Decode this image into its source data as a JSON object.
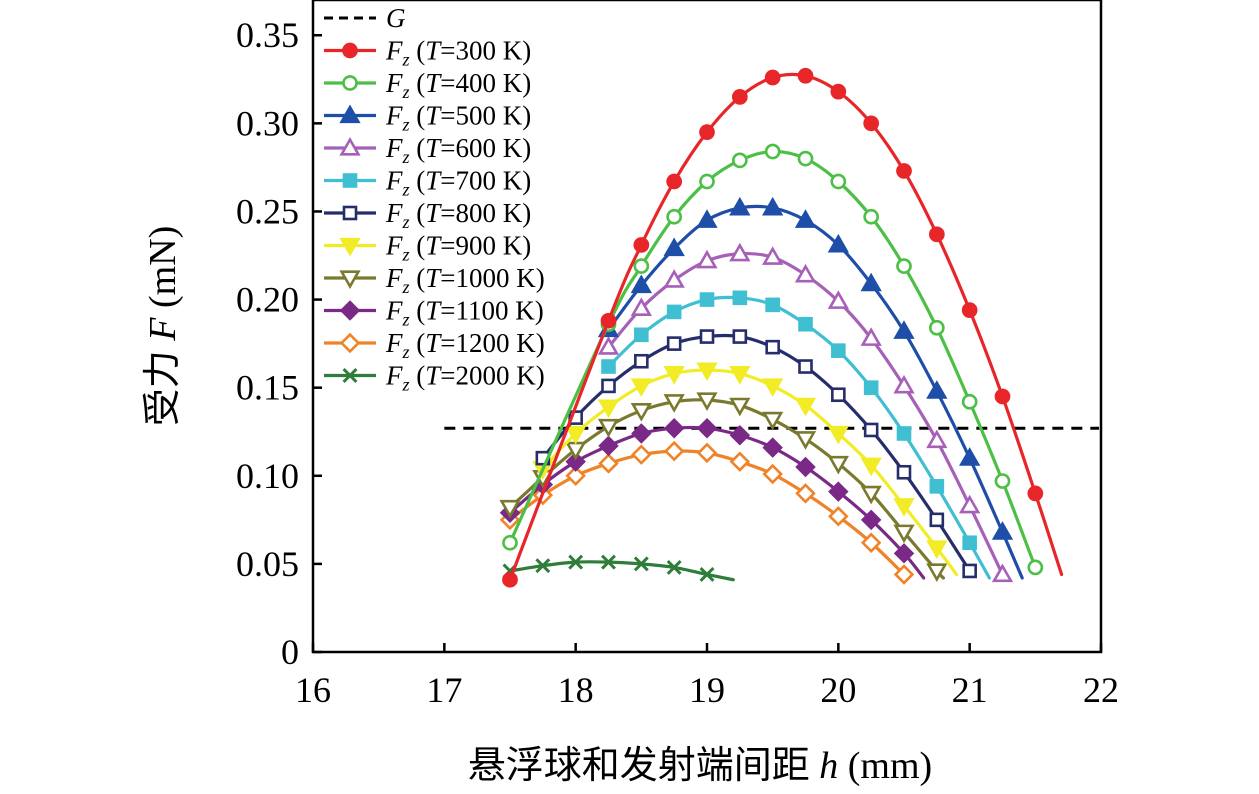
{
  "chart_data": {
    "type": "line",
    "xlabel": "悬浮球和发射端间距 h (mm)",
    "ylabel": "受力 F (mN)",
    "xlim": [
      16,
      22
    ],
    "ylim": [
      0,
      0.37
    ],
    "xticks": [
      "16",
      "17",
      "18",
      "19",
      "20",
      "21",
      "22"
    ],
    "yticks": [
      "0",
      "0.05",
      "0.10",
      "0.15",
      "0.20",
      "0.25",
      "0.30",
      "0.35"
    ],
    "grid": false,
    "legend_placement": "top-left",
    "reference_line": {
      "name": "G",
      "y": 0.127,
      "x_range": [
        17.0,
        22.0
      ],
      "color": "#000000",
      "style": "dashed"
    },
    "series": [
      {
        "name": "Fz (T=300 K)",
        "color": "#e8262a",
        "marker": "circle",
        "filled": true,
        "x": [
          17.5,
          18.25,
          18.5,
          18.75,
          19.0,
          19.25,
          19.5,
          19.75,
          20.0,
          20.25,
          20.5,
          20.75,
          21.0,
          21.25,
          21.5
        ],
        "y": [
          0.041,
          0.188,
          0.231,
          0.267,
          0.295,
          0.315,
          0.326,
          0.327,
          0.318,
          0.3,
          0.273,
          0.237,
          0.194,
          0.145,
          0.09
        ],
        "end_x": 21.7,
        "end_y": 0.044
      },
      {
        "name": "Fz (T=400 K)",
        "color": "#4cc046",
        "marker": "circle",
        "filled": false,
        "x": [
          17.5,
          18.25,
          18.5,
          18.75,
          19.0,
          19.25,
          19.5,
          19.75,
          20.0,
          20.25,
          20.5,
          20.75,
          21.0,
          21.25,
          21.5
        ],
        "y": [
          0.062,
          0.186,
          0.219,
          0.247,
          0.267,
          0.279,
          0.284,
          0.28,
          0.267,
          0.247,
          0.219,
          0.184,
          0.142,
          0.097,
          0.048
        ],
        "end_x": 21.5,
        "end_y": 0.048
      },
      {
        "name": "Fz (T=500 K)",
        "color": "#1f4ea8",
        "marker": "triangle",
        "filled": true,
        "x": [
          18.25,
          18.5,
          18.75,
          19.0,
          19.25,
          19.5,
          19.75,
          20.0,
          20.25,
          20.5,
          20.75,
          21.0,
          21.25
        ],
        "y": [
          0.183,
          0.208,
          0.229,
          0.245,
          0.252,
          0.252,
          0.245,
          0.231,
          0.209,
          0.182,
          0.148,
          0.11,
          0.068
        ],
        "end_x": 21.4,
        "end_y": 0.042
      },
      {
        "name": "Fz (T=600 K)",
        "color": "#a660b8",
        "marker": "triangle",
        "filled": false,
        "x": [
          18.25,
          18.5,
          18.75,
          19.0,
          19.25,
          19.5,
          19.75,
          20.0,
          20.25,
          20.5,
          20.75,
          21.0,
          21.25
        ],
        "y": [
          0.173,
          0.195,
          0.211,
          0.222,
          0.226,
          0.224,
          0.214,
          0.199,
          0.178,
          0.151,
          0.12,
          0.083,
          0.044
        ],
        "end_x": 21.25,
        "end_y": 0.044
      },
      {
        "name": "Fz (T=700 K)",
        "color": "#3fbfd1",
        "marker": "square",
        "filled": true,
        "x": [
          18.25,
          18.5,
          18.75,
          19.0,
          19.25,
          19.5,
          19.75,
          20.0,
          20.25,
          20.5,
          20.75,
          21.0
        ],
        "y": [
          0.162,
          0.18,
          0.193,
          0.2,
          0.201,
          0.197,
          0.186,
          0.171,
          0.15,
          0.124,
          0.094,
          0.062
        ],
        "end_x": 21.15,
        "end_y": 0.042
      },
      {
        "name": "Fz (T=800 K)",
        "color": "#262d6b",
        "marker": "square",
        "filled": false,
        "x": [
          17.75,
          18.0,
          18.25,
          18.5,
          18.75,
          19.0,
          19.25,
          19.5,
          19.75,
          20.0,
          20.25,
          20.5,
          20.75,
          21.0
        ],
        "y": [
          0.11,
          0.133,
          0.151,
          0.165,
          0.175,
          0.179,
          0.179,
          0.173,
          0.162,
          0.146,
          0.126,
          0.102,
          0.075,
          0.046
        ],
        "end_x": 21.0,
        "end_y": 0.046
      },
      {
        "name": "Fz (T=900 K)",
        "color": "#f2ec26",
        "marker": "triangle-down",
        "filled": true,
        "x": [
          17.75,
          18.0,
          18.25,
          18.5,
          18.75,
          19.0,
          19.25,
          19.5,
          19.75,
          20.0,
          20.25,
          20.5,
          20.75
        ],
        "y": [
          0.104,
          0.124,
          0.139,
          0.151,
          0.158,
          0.16,
          0.158,
          0.151,
          0.14,
          0.124,
          0.106,
          0.083,
          0.059
        ],
        "end_x": 20.9,
        "end_y": 0.044
      },
      {
        "name": "Fz (T=1000 K)",
        "color": "#7a7a2e",
        "marker": "triangle-down",
        "filled": false,
        "x": [
          17.5,
          17.75,
          18.0,
          18.25,
          18.5,
          18.75,
          19.0,
          19.25,
          19.5,
          19.75,
          20.0,
          20.25,
          20.5,
          20.75
        ],
        "y": [
          0.082,
          0.099,
          0.115,
          0.128,
          0.137,
          0.142,
          0.143,
          0.14,
          0.132,
          0.121,
          0.107,
          0.09,
          0.068,
          0.046
        ],
        "end_x": 20.8,
        "end_y": 0.042
      },
      {
        "name": "Fz (T=1100 K)",
        "color": "#7a2a86",
        "marker": "diamond",
        "filled": true,
        "x": [
          17.5,
          17.75,
          18.0,
          18.25,
          18.5,
          18.75,
          19.0,
          19.25,
          19.5,
          19.75,
          20.0,
          20.25,
          20.5
        ],
        "y": [
          0.079,
          0.095,
          0.108,
          0.117,
          0.124,
          0.127,
          0.127,
          0.123,
          0.116,
          0.105,
          0.091,
          0.075,
          0.056
        ],
        "end_x": 20.65,
        "end_y": 0.042
      },
      {
        "name": "Fz (T=1200 K)",
        "color": "#f08228",
        "marker": "diamond",
        "filled": false,
        "x": [
          17.5,
          17.75,
          18.0,
          18.25,
          18.5,
          18.75,
          19.0,
          19.25,
          19.5,
          19.75,
          20.0,
          20.25,
          20.5
        ],
        "y": [
          0.075,
          0.089,
          0.1,
          0.107,
          0.112,
          0.114,
          0.113,
          0.108,
          0.101,
          0.09,
          0.077,
          0.062,
          0.044
        ],
        "end_x": 20.5,
        "end_y": 0.044
      },
      {
        "name": "Fz (T=2000 K)",
        "color": "#2e7d3a",
        "marker": "x",
        "filled": true,
        "x": [
          17.5,
          17.75,
          18.0,
          18.25,
          18.5,
          18.75,
          19.0
        ],
        "y": [
          0.046,
          0.049,
          0.051,
          0.051,
          0.05,
          0.048,
          0.044
        ],
        "end_x": 19.2,
        "end_y": 0.041
      }
    ],
    "legend": [
      {
        "label": "G",
        "color": "#000000",
        "marker": "none",
        "style": "dashed"
      },
      {
        "prefix": "F",
        "sub": "z",
        "mid": " (",
        "it": "T",
        "suffix": "=300 K)",
        "series": 0
      },
      {
        "prefix": "F",
        "sub": "z",
        "mid": " (",
        "it": "T",
        "suffix": "=400 K)",
        "series": 1
      },
      {
        "prefix": "F",
        "sub": "z",
        "mid": " (",
        "it": "T",
        "suffix": "=500 K)",
        "series": 2
      },
      {
        "prefix": "F",
        "sub": "z",
        "mid": " (",
        "it": "T",
        "suffix": "=600 K)",
        "series": 3
      },
      {
        "prefix": "F",
        "sub": "z",
        "mid": " (",
        "it": "T",
        "suffix": "=700 K)",
        "series": 4
      },
      {
        "prefix": "F",
        "sub": "z",
        "mid": " (",
        "it": "T",
        "suffix": "=800 K)",
        "series": 5
      },
      {
        "prefix": "F",
        "sub": "z",
        "mid": " (",
        "it": "T",
        "suffix": "=900 K)",
        "series": 6
      },
      {
        "prefix": "F",
        "sub": "z",
        "mid": " (",
        "it": "T",
        "suffix": "=1000 K)",
        "series": 7
      },
      {
        "prefix": "F",
        "sub": "z",
        "mid": " (",
        "it": "T",
        "suffix": "=1100 K)",
        "series": 8
      },
      {
        "prefix": "F",
        "sub": "z",
        "mid": " (",
        "it": "T",
        "suffix": "=1200 K)",
        "series": 9
      },
      {
        "prefix": "F",
        "sub": "z",
        "mid": " (",
        "it": "T",
        "suffix": "=2000 K)",
        "series": 10
      }
    ]
  },
  "axis_titles": {
    "x_main": "悬浮球和发射端间距 ",
    "x_var": "h",
    "x_unit": " (mm)",
    "y_main": "受力 ",
    "y_var": "F",
    "y_unit": " (mN)"
  }
}
